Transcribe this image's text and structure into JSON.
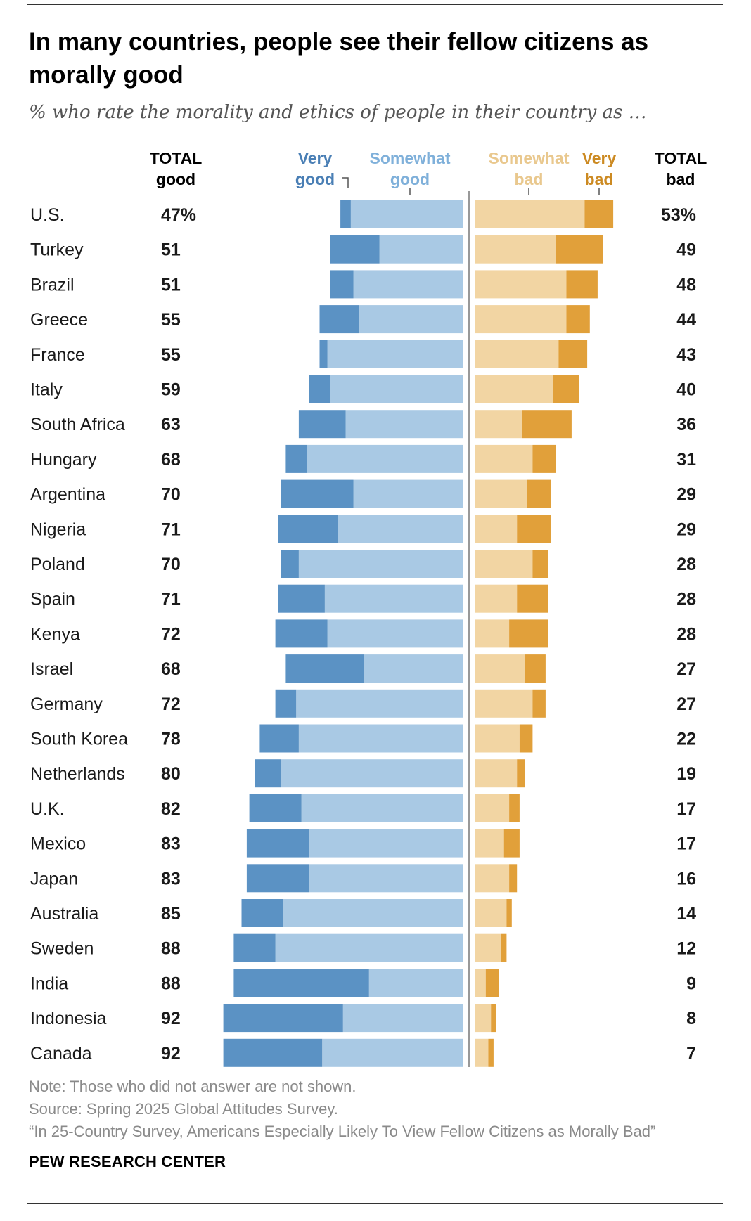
{
  "title": "In many countries, people see their fellow citizens as morally good",
  "subtitle": "% who rate the morality and ethics of people in their country as …",
  "headers": {
    "total_good": [
      "TOTAL",
      "good"
    ],
    "very_good": [
      "Very",
      "good"
    ],
    "somewhat_good": [
      "Somewhat",
      "good"
    ],
    "somewhat_bad": [
      "Somewhat",
      "bad"
    ],
    "very_bad": [
      "Very",
      "bad"
    ],
    "total_bad": [
      "TOTAL",
      "bad"
    ]
  },
  "colors": {
    "very_good": "#5b92c4",
    "somewhat_good": "#a9c9e4",
    "somewhat_bad": "#f2d5a3",
    "very_bad": "#e1a03a",
    "very_good_text": "#4a7fb5",
    "somewhat_good_text": "#7fb0da",
    "somewhat_bad_text": "#e9c88e",
    "very_bad_text": "#cc8a22",
    "axis": "#999999"
  },
  "chart_data": {
    "type": "bar",
    "orientation": "horizontal-diverging",
    "title": "In many countries, people see their fellow citizens as morally good",
    "series_names": [
      "Very good",
      "Somewhat good",
      "Somewhat bad",
      "Very bad"
    ],
    "categories": [
      "U.S.",
      "Turkey",
      "Brazil",
      "Greece",
      "France",
      "Italy",
      "South Africa",
      "Hungary",
      "Argentina",
      "Nigeria",
      "Poland",
      "Spain",
      "Kenya",
      "Israel",
      "Germany",
      "South Korea",
      "Netherlands",
      "U.K.",
      "Mexico",
      "Japan",
      "Australia",
      "Sweden",
      "India",
      "Indonesia",
      "Canada"
    ],
    "total_good_labels": [
      "47%",
      "51",
      "51",
      "55",
      "55",
      "59",
      "63",
      "68",
      "70",
      "71",
      "70",
      "71",
      "72",
      "68",
      "72",
      "78",
      "80",
      "82",
      "83",
      "83",
      "85",
      "88",
      "88",
      "92",
      "92"
    ],
    "total_bad_labels": [
      "53%",
      "49",
      "48",
      "44",
      "43",
      "40",
      "36",
      "31",
      "29",
      "29",
      "28",
      "28",
      "28",
      "27",
      "27",
      "22",
      "19",
      "17",
      "17",
      "16",
      "14",
      "12",
      "9",
      "8",
      "7"
    ],
    "very_good": [
      4,
      19,
      9,
      15,
      3,
      8,
      18,
      8,
      28,
      23,
      7,
      18,
      20,
      30,
      8,
      15,
      10,
      20,
      24,
      24,
      16,
      16,
      52,
      46,
      38
    ],
    "somewhat_good": [
      43,
      32,
      42,
      40,
      52,
      51,
      45,
      60,
      42,
      48,
      63,
      53,
      52,
      38,
      64,
      63,
      70,
      62,
      59,
      59,
      69,
      72,
      36,
      46,
      54
    ],
    "somewhat_bad": [
      42,
      31,
      35,
      35,
      32,
      30,
      18,
      22,
      20,
      16,
      22,
      16,
      13,
      19,
      22,
      17,
      16,
      13,
      11,
      13,
      12,
      10,
      4,
      6,
      5
    ],
    "very_bad": [
      11,
      18,
      12,
      9,
      11,
      10,
      19,
      9,
      9,
      13,
      6,
      12,
      15,
      8,
      5,
      5,
      3,
      4,
      6,
      3,
      2,
      2,
      5,
      2,
      2
    ]
  },
  "footer": {
    "note": "Note: Those who did not answer are not shown.",
    "source": "Source: Spring 2025 Global Attitudes Survey.",
    "report": "“In 25-Country Survey, Americans Especially Likely To View Fellow Citizens as Morally Bad”",
    "brand": "PEW RESEARCH CENTER"
  }
}
